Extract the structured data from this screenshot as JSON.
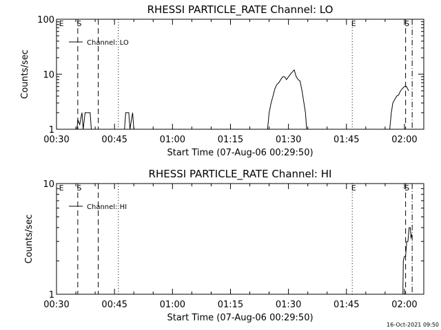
{
  "footer": {
    "timestamp": "16-Oct-2021 09:50"
  },
  "chart_data": [
    {
      "type": "line",
      "title": "RHESSI PARTICLE_RATE Channel: LO",
      "xlabel": "Start Time (07-Aug-06 00:29:50)",
      "ylabel": "Counts/sec",
      "y_scale": "log",
      "ylim": [
        1,
        100
      ],
      "xlim": [
        30.0,
        125.0
      ],
      "x_unit": "minutes after 00:00 UT",
      "xtick_labels": [
        "00:30",
        "00:45",
        "01:00",
        "01:15",
        "01:30",
        "01:45",
        "02:00"
      ],
      "ytick_labels": [
        "1",
        "10",
        "100"
      ],
      "legend": {
        "label": "Channel: LO",
        "placement": "top-left"
      },
      "series": [
        {
          "name": "Channel: LO",
          "x": [
            30.0,
            35.3,
            35.5,
            36.0,
            36.3,
            36.6,
            36.9,
            37.4,
            37.7,
            38.0,
            38.4,
            38.7,
            39.0,
            47.6,
            47.9,
            48.4,
            48.7,
            49.0,
            49.4,
            49.7,
            50.0,
            84.6,
            85.0,
            85.5,
            86.0,
            86.5,
            87.0,
            87.5,
            88.0,
            88.5,
            89.0,
            89.5,
            90.0,
            90.5,
            91.0,
            91.5,
            92.0,
            92.5,
            93.0,
            93.5,
            94.0,
            94.4,
            94.7,
            116.2,
            116.6,
            117.0,
            117.5,
            118.0,
            118.5,
            119.0,
            119.5,
            120.0,
            120.5,
            120.8,
            121.1
          ],
          "y": [
            1,
            1,
            1.5,
            1.2,
            1.6,
            2,
            1,
            2,
            2,
            2,
            2,
            2,
            1,
            1,
            2,
            2,
            2,
            1,
            1.5,
            2,
            1,
            1,
            2,
            3,
            4,
            5.5,
            6.5,
            7,
            8,
            9,
            9,
            8,
            9,
            10,
            11,
            12,
            9,
            8,
            7.5,
            5,
            3,
            2,
            1,
            1,
            2,
            3,
            3.5,
            4,
            4.2,
            5,
            5.5,
            6,
            6,
            5.5,
            5
          ]
        }
      ],
      "markers": [
        {
          "label": "E",
          "x": 30.3,
          "style": "none"
        },
        {
          "label": "S",
          "x": 35.5,
          "style": "dashed"
        },
        {
          "label": "",
          "x": 40.8,
          "style": "dashed"
        },
        {
          "label": "",
          "x": 46.0,
          "style": "dotted"
        },
        {
          "label": "E",
          "x": 106.5,
          "style": "dotted"
        },
        {
          "label": "S",
          "x": 120.3,
          "style": "dashed"
        },
        {
          "label": "",
          "x": 122.0,
          "style": "dashdot"
        }
      ]
    },
    {
      "type": "line",
      "title": "RHESSI PARTICLE_RATE Channel: HI",
      "xlabel": "Start Time (07-Aug-06 00:29:50)",
      "ylabel": "Counts/sec",
      "y_scale": "log",
      "ylim": [
        1,
        10
      ],
      "xlim": [
        30.0,
        125.0
      ],
      "x_unit": "minutes after 00:00 UT",
      "xtick_labels": [
        "00:30",
        "00:45",
        "01:00",
        "01:15",
        "01:30",
        "01:45",
        "02:00"
      ],
      "ytick_labels": [
        "1",
        "10"
      ],
      "legend": {
        "label": "Channel: HI",
        "placement": "top-left"
      },
      "series": [
        {
          "name": "Channel: HI",
          "x": [
            30.0,
            119.6,
            119.7,
            120.0,
            120.3,
            120.6,
            120.9,
            121.2,
            121.5,
            121.7,
            121.9
          ],
          "y": [
            1,
            1,
            2,
            2.2,
            2.2,
            3,
            3,
            4,
            4,
            3.2,
            3.5
          ]
        }
      ],
      "markers": [
        {
          "label": "E",
          "x": 30.3,
          "style": "none"
        },
        {
          "label": "S",
          "x": 35.5,
          "style": "dashed"
        },
        {
          "label": "",
          "x": 40.8,
          "style": "dashed"
        },
        {
          "label": "",
          "x": 46.0,
          "style": "dotted"
        },
        {
          "label": "E",
          "x": 106.5,
          "style": "dotted"
        },
        {
          "label": "S",
          "x": 120.3,
          "style": "dashed"
        },
        {
          "label": "",
          "x": 122.0,
          "style": "dashdot"
        }
      ]
    }
  ]
}
